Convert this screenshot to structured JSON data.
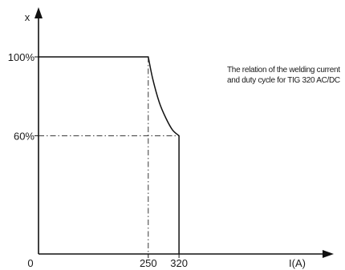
{
  "chart_data": {
    "type": "line",
    "title": "",
    "xlabel": "I(A)",
    "ylabel": "x",
    "origin_label": "0",
    "xlim": [
      0,
      385
    ],
    "ylim": [
      0,
      118
    ],
    "x_ticks": [
      {
        "value": 250,
        "label": "250"
      },
      {
        "value": 320,
        "label": "320"
      }
    ],
    "y_ticks": [
      {
        "value": 100,
        "label": "100%"
      },
      {
        "value": 60,
        "label": "60%"
      }
    ],
    "series": [
      {
        "points": [
          {
            "x": 0,
            "y": 100
          },
          {
            "x": 250,
            "y": 100
          },
          {
            "x": 260,
            "y": 89
          },
          {
            "x": 275,
            "y": 77
          },
          {
            "x": 290,
            "y": 69
          },
          {
            "x": 305,
            "y": 63
          },
          {
            "x": 320,
            "y": 60
          },
          {
            "x": 320,
            "y": 0
          }
        ]
      }
    ],
    "reference_lines": [
      {
        "from": {
          "x": 250,
          "y": 100
        },
        "to": {
          "x": 250,
          "y": 0
        }
      },
      {
        "from": {
          "x": 0,
          "y": 60
        },
        "to": {
          "x": 320,
          "y": 60
        }
      }
    ],
    "annotation": {
      "lines": [
        "The relation of the welding current",
        "and duty cycle for TIG 320 AC/DC"
      ],
      "x": 283,
      "y": 97
    },
    "grid": false
  }
}
